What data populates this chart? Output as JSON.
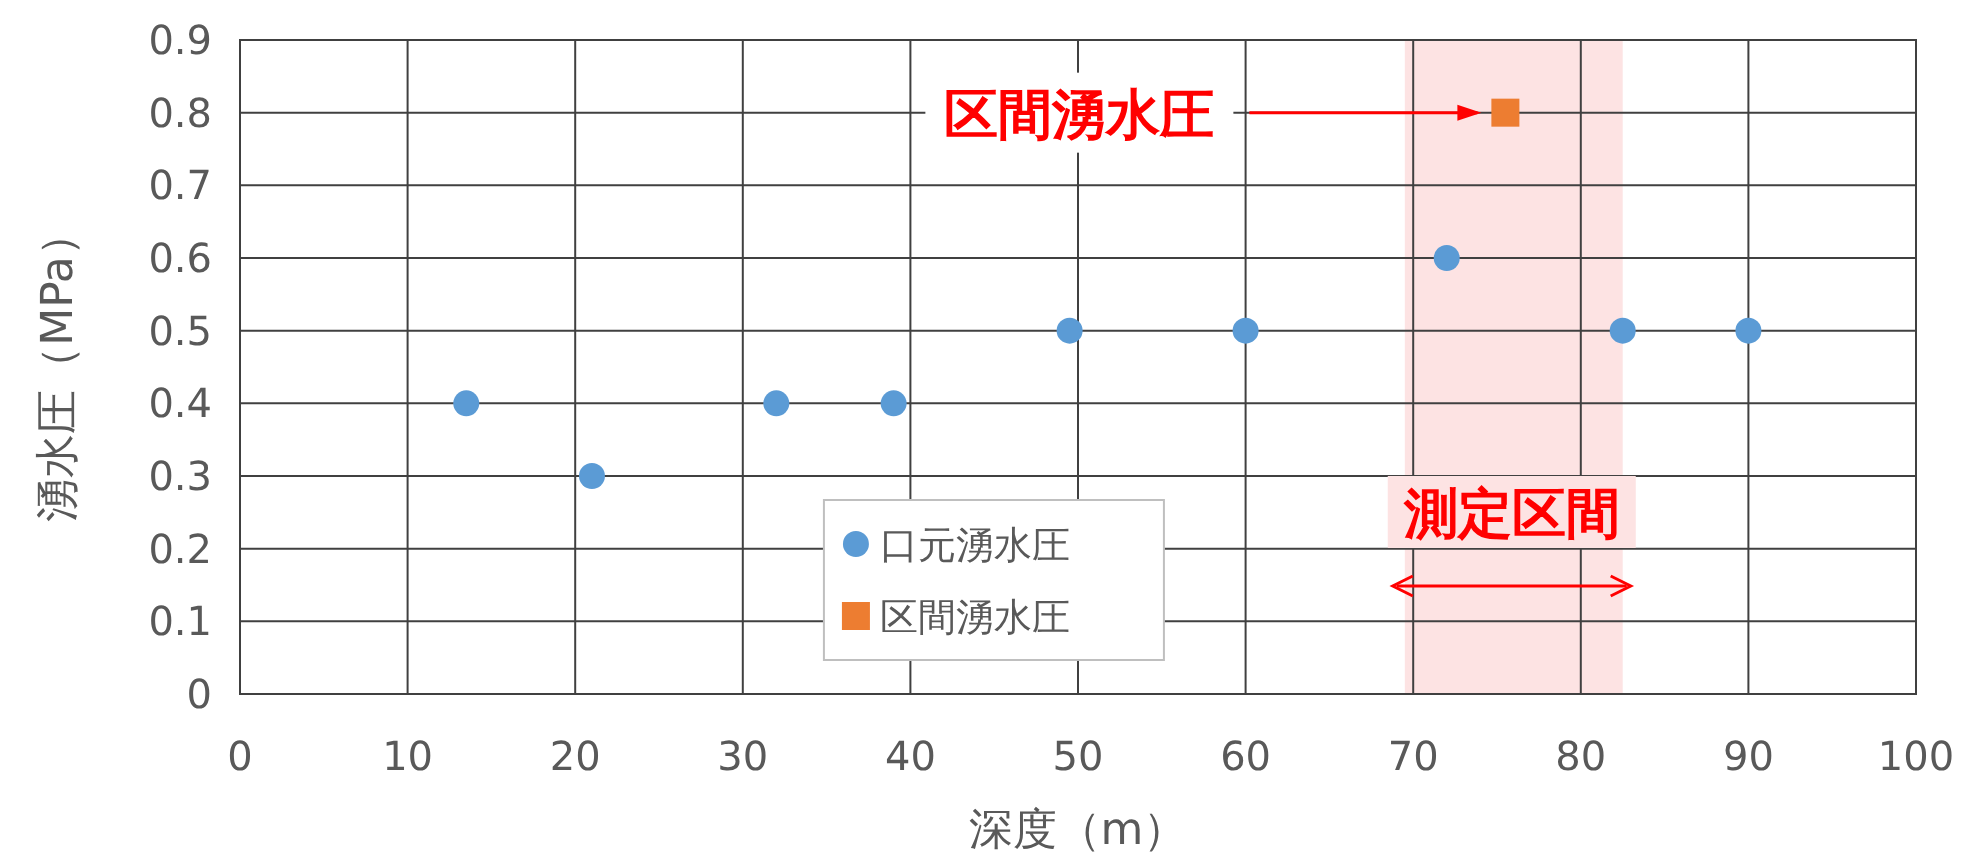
{
  "chart_data": {
    "type": "scatter",
    "xlabel": "深度（m）",
    "ylabel": "湧水圧（MPa）",
    "xlim": [
      0,
      100
    ],
    "xticks": [
      0,
      10,
      20,
      30,
      40,
      50,
      60,
      70,
      80,
      90,
      100
    ],
    "ylim": [
      0,
      0.9
    ],
    "yticks": [
      0,
      0.1,
      0.2,
      0.3,
      0.4,
      0.5,
      0.6,
      0.7,
      0.8,
      0.9
    ],
    "grid": true,
    "legend": "bottom",
    "series": [
      {
        "name": "口元湧水圧",
        "color": "#5b9bd5",
        "marker": "circle",
        "x": [
          13.5,
          21,
          32,
          39,
          49.5,
          60,
          72,
          82.5,
          90
        ],
        "values": [
          0.4,
          0.3,
          0.4,
          0.4,
          0.5,
          0.5,
          0.6,
          0.5,
          0.5
        ]
      },
      {
        "name": "区間湧水圧",
        "color": "#ed7d31",
        "marker": "square",
        "x": [
          75.5
        ],
        "values": [
          0.8
        ]
      }
    ],
    "bands": [
      {
        "axis": "x",
        "from": 69.5,
        "to": 82.5,
        "label": "測定区間",
        "color": "#fde3e3"
      }
    ],
    "annotations": [
      "区間湧水圧"
    ]
  }
}
